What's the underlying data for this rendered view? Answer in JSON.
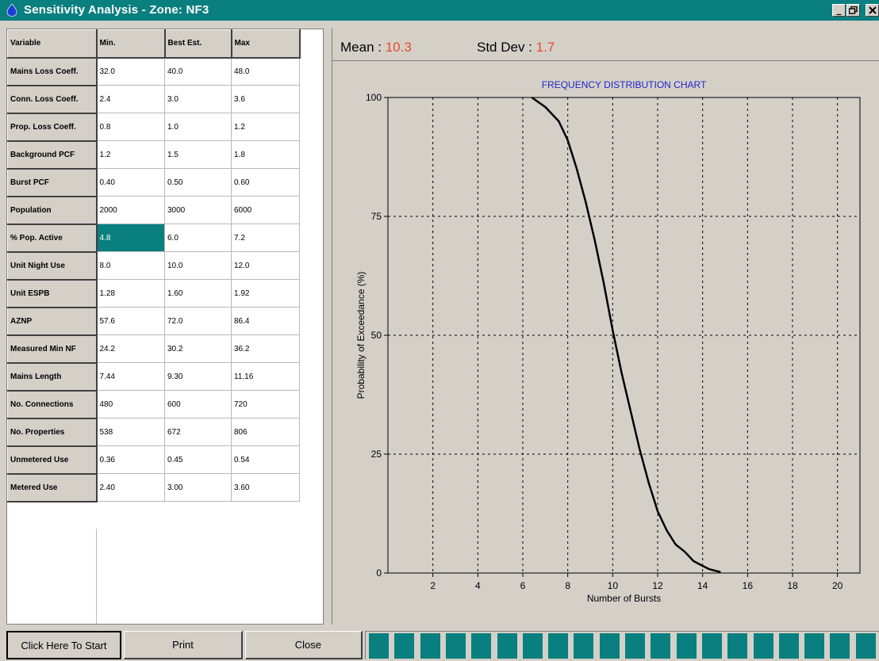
{
  "window": {
    "title": "Sensitivity Analysis - Zone: NF3",
    "controls": {
      "minimize": "_",
      "maximize": "🗗",
      "close": "✕"
    },
    "title_bar_color": "#0a7f7f"
  },
  "grid": {
    "headers": [
      "Variable",
      "Min.",
      "Best Est.",
      "Max"
    ],
    "rows": [
      [
        "Mains Loss Coeff.",
        "32.0",
        "40.0",
        "48.0"
      ],
      [
        "Conn. Loss Coeff.",
        "2.4",
        "3.0",
        "3.6"
      ],
      [
        "Prop. Loss Coeff.",
        "0.8",
        "1.0",
        "1.2"
      ],
      [
        "Background PCF",
        "1.2",
        "1.5",
        "1.8"
      ],
      [
        "Burst PCF",
        "0.40",
        "0.50",
        "0.60"
      ],
      [
        "Population",
        "2000",
        "3000",
        "6000"
      ],
      [
        "% Pop. Active",
        "4.8",
        "6.0",
        "7.2"
      ],
      [
        "Unit Night Use",
        "8.0",
        "10.0",
        "12.0"
      ],
      [
        "Unit ESPB",
        "1.28",
        "1.60",
        "1.92"
      ],
      [
        "AZNP",
        "57.6",
        "72.0",
        "86.4"
      ],
      [
        "Measured Min NF",
        "24.2",
        "30.2",
        "36.2"
      ],
      [
        "Mains Length",
        "7.44",
        "9.30",
        "11.16"
      ],
      [
        "No. Connections",
        "480",
        "600",
        "720"
      ],
      [
        "No. Properties",
        "538",
        "672",
        "806"
      ],
      [
        "Unmetered Use",
        "0.36",
        "0.45",
        "0.54"
      ],
      [
        "Metered Use",
        "2.40",
        "3.00",
        "3.60"
      ]
    ],
    "selected_cell": {
      "row": 6,
      "col": 1
    },
    "selection_color": "#0a7f7f"
  },
  "stats": {
    "mean_label": "Mean : ",
    "mean_value": "10.3",
    "std_label": "Std Dev : ",
    "std_value": "1.7",
    "value_color": "#e84a2a"
  },
  "chart_data": {
    "type": "line",
    "title": "FREQUENCY DISTRIBUTION CHART",
    "xlabel": "Number of Bursts",
    "ylabel": "Probability of Exceedance (%)",
    "xlim": [
      0,
      21
    ],
    "ylim": [
      0,
      100
    ],
    "xticks": [
      2,
      4,
      6,
      8,
      10,
      12,
      14,
      16,
      18,
      20
    ],
    "yticks": [
      0,
      25,
      50,
      75,
      100
    ],
    "grid": true,
    "title_color": "#2323c8",
    "series": [
      {
        "x": [
          6.4,
          7.0,
          7.6,
          8.0,
          8.4,
          8.8,
          9.2,
          9.6,
          10.0,
          10.4,
          10.8,
          11.2,
          11.6,
          12.0,
          12.4,
          12.8,
          13.2,
          13.6,
          14.0,
          14.3,
          14.8
        ],
        "y": [
          100,
          98,
          95,
          91,
          85,
          78,
          70,
          61,
          51,
          42,
          34,
          26,
          19,
          13,
          9,
          6,
          4.5,
          2.5,
          1.5,
          0.8,
          0.2
        ]
      }
    ]
  },
  "buttons": {
    "start": "Click Here To Start",
    "print": "Print",
    "close": "Close"
  },
  "progress": {
    "segments": 20,
    "filled_segments": 20,
    "bar_color": "#0a7f7f"
  }
}
